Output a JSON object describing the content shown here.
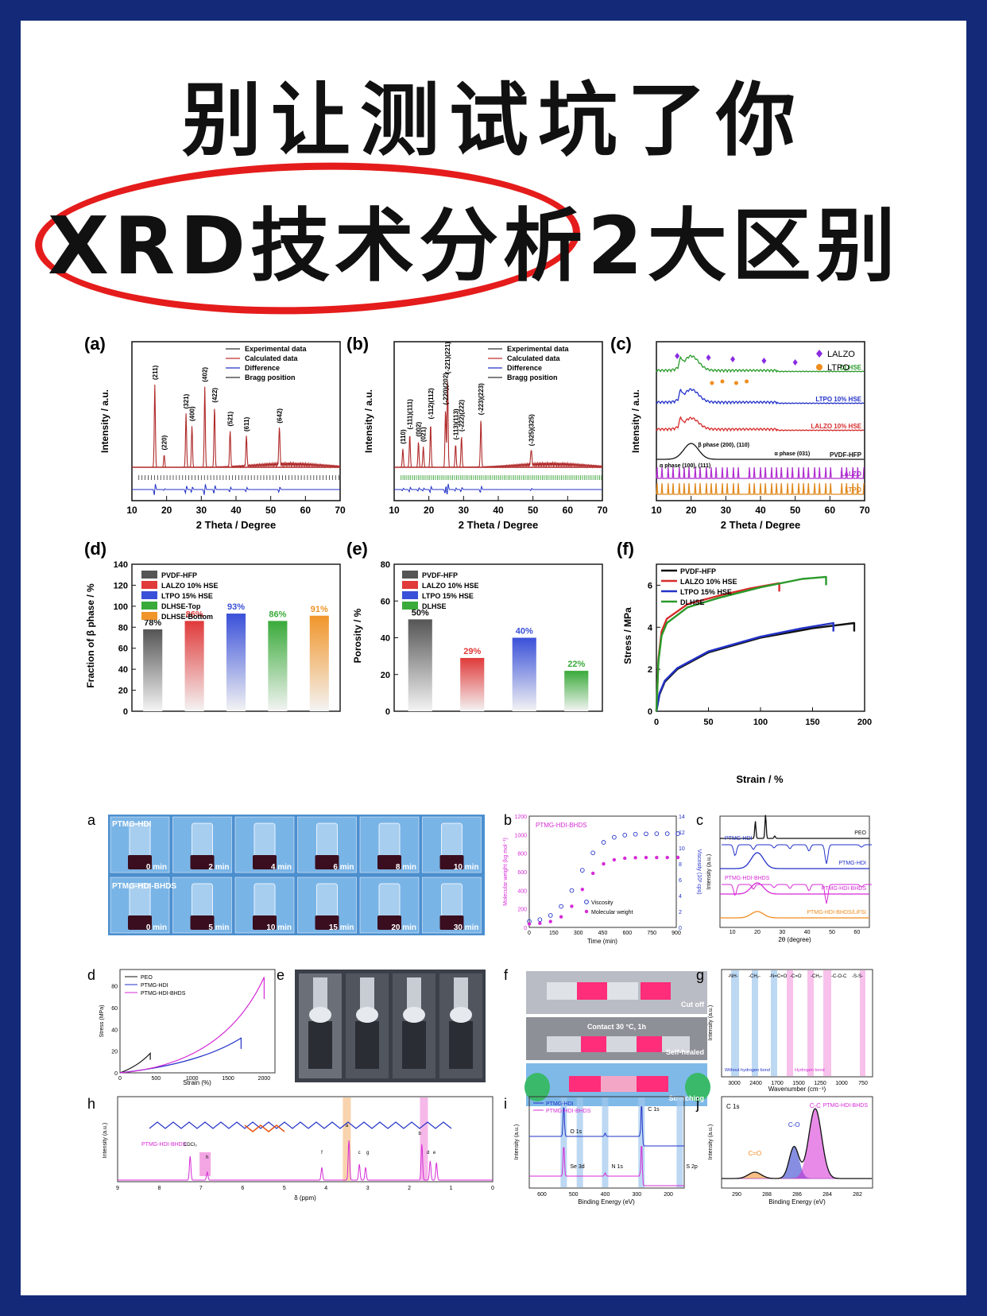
{
  "title": {
    "line1": "别让测试坑了你",
    "line2": "XRD技术分析2大区别"
  },
  "colors": {
    "background": "#142a78",
    "card": "#ffffff",
    "oval": "#e51c1c",
    "red": "#d62b2b",
    "blue": "#2332c8",
    "green": "#2a9a2a"
  },
  "panel_a": {
    "label": "(a)",
    "xlabel": "2 Theta / Degree",
    "ylabel": "Intensity / a.u.",
    "legend": [
      "Experimental data",
      "Calculated data",
      "Difference",
      "Bragg position"
    ],
    "xticks": [
      "10",
      "20",
      "30",
      "40",
      "50",
      "60",
      "70"
    ],
    "peaks": [
      {
        "x": 16.6,
        "h": 0.8,
        "label": "(211)"
      },
      {
        "x": 19.3,
        "h": 0.12,
        "label": "(220)"
      },
      {
        "x": 25.6,
        "h": 0.52,
        "label": "(321)"
      },
      {
        "x": 27.3,
        "h": 0.4,
        "label": "(400)"
      },
      {
        "x": 31.0,
        "h": 0.78,
        "label": "(402)"
      },
      {
        "x": 33.8,
        "h": 0.58,
        "label": "(422)"
      },
      {
        "x": 38.3,
        "h": 0.35,
        "label": "(521)"
      },
      {
        "x": 43.0,
        "h": 0.3,
        "label": "(611)"
      },
      {
        "x": 52.5,
        "h": 0.38,
        "label": "(642)"
      }
    ]
  },
  "panel_b": {
    "label": "(b)",
    "xlabel": "2 Theta / Degree",
    "ylabel": "Intensity / a.u.",
    "legend": [
      "Experimental data",
      "Calculated data",
      "Difference",
      "Bragg position"
    ],
    "xticks": [
      "10",
      "20",
      "30",
      "40",
      "50",
      "60",
      "70"
    ],
    "peaks": [
      {
        "x": 12.5,
        "h": 0.18,
        "label": "(110)"
      },
      {
        "x": 14.5,
        "h": 0.32,
        "label": "(-111)(111)"
      },
      {
        "x": 17.0,
        "h": 0.25,
        "label": "(002)"
      },
      {
        "x": 18.4,
        "h": 0.2,
        "label": "(021)"
      },
      {
        "x": 20.5,
        "h": 0.42,
        "label": "(-112)(112)"
      },
      {
        "x": 24.8,
        "h": 0.56,
        "label": "(-220)(202)"
      },
      {
        "x": 25.4,
        "h": 0.86,
        "label": "(-221)(221)"
      },
      {
        "x": 27.7,
        "h": 0.22,
        "label": "(-113)(113)"
      },
      {
        "x": 29.4,
        "h": 0.3,
        "label": "(-222)(222)"
      },
      {
        "x": 35.0,
        "h": 0.46,
        "label": "(-223)(223)"
      },
      {
        "x": 49.5,
        "h": 0.16,
        "label": "(-325)(325)"
      }
    ]
  },
  "panel_c": {
    "label": "(c)",
    "xlabel": "2 Theta / Degree",
    "ylabel": "Intensity / a.u.",
    "legend": [
      "LALZO",
      "LTPO"
    ],
    "xticks": [
      "10",
      "20",
      "30",
      "40",
      "50",
      "60",
      "70"
    ],
    "traces": [
      "DLHSE",
      "LTPO 10% HSE",
      "LALZO 10% HSE",
      "PVDF-HFP",
      "LALZO",
      "LTPO"
    ],
    "annotations": [
      "β phase (200), (110)",
      "α phase (100), (111)",
      "α phase (031)"
    ]
  },
  "panel_d": {
    "label": "(d)",
    "ylabel": "Fraction of β phase / %",
    "legend": [
      "PVDF-HFP",
      "LALZO 10% HSE",
      "LTPO 15% HSE",
      "DLHSE-Top",
      "DLHSE-Bottom"
    ],
    "yticks": [
      "0",
      "20",
      "40",
      "60",
      "80",
      "100",
      "120",
      "140"
    ]
  },
  "panel_e": {
    "label": "(e)",
    "ylabel": "Porosity / %",
    "legend": [
      "PVDF-HFP",
      "LALZO 10% HSE",
      "LTPO 15% HSE",
      "DLHSE"
    ],
    "yticks": [
      "0",
      "20",
      "40",
      "60",
      "80"
    ]
  },
  "panel_f": {
    "label": "(f)",
    "xlabel": "Strain / %",
    "ylabel": "Stress / MPa",
    "legend": [
      "PVDF-HFP",
      "LALZO 10% HSE",
      "LTPO 15% HSE",
      "DLHSE"
    ],
    "xticks": [
      "0",
      "50",
      "100",
      "150",
      "200"
    ],
    "yticks": [
      "0",
      "2",
      "4",
      "6"
    ]
  },
  "chart_data": [
    {
      "type": "bar",
      "categories": [
        "PVDF-HFP",
        "LALZO 10% HSE",
        "LTPO 15% HSE",
        "DLHSE-Top",
        "DLHSE-Bottom"
      ],
      "values": [
        78,
        86,
        93,
        86,
        91
      ],
      "labels": [
        "78%",
        "86%",
        "93%",
        "86%",
        "91%"
      ],
      "ylabel": "Fraction of β phase / %",
      "ylim": [
        0,
        140
      ]
    },
    {
      "type": "bar",
      "categories": [
        "PVDF-HFP",
        "LALZO 10% HSE",
        "LTPO 15% HSE",
        "DLHSE"
      ],
      "values": [
        50,
        29,
        40,
        22
      ],
      "labels": [
        "50%",
        "29%",
        "40%",
        "22%"
      ],
      "ylabel": "Porosity / %",
      "ylim": [
        0,
        80
      ]
    },
    {
      "type": "line",
      "xlabel": "Strain / %",
      "ylabel": "Stress / MPa",
      "xlim": [
        0,
        200
      ],
      "ylim": [
        0,
        7
      ],
      "series": [
        {
          "name": "PVDF-HFP",
          "x": [
            0,
            3,
            8,
            20,
            50,
            100,
            150,
            190
          ],
          "y": [
            0,
            0.8,
            1.4,
            2.0,
            2.8,
            3.5,
            3.95,
            4.2
          ]
        },
        {
          "name": "LALZO 10% HSE",
          "x": [
            0,
            2,
            5,
            10,
            30,
            60,
            90,
            118
          ],
          "y": [
            0,
            2.5,
            3.8,
            4.4,
            5.1,
            5.5,
            5.85,
            6.1
          ]
        },
        {
          "name": "LTPO 15% HSE",
          "x": [
            0,
            3,
            8,
            20,
            50,
            100,
            140,
            170
          ],
          "y": [
            0,
            0.85,
            1.45,
            2.05,
            2.85,
            3.55,
            3.95,
            4.2
          ]
        },
        {
          "name": "DLHSE",
          "x": [
            0,
            2,
            5,
            10,
            30,
            60,
            100,
            140,
            163
          ],
          "y": [
            0,
            2.4,
            3.6,
            4.2,
            4.95,
            5.4,
            5.9,
            6.3,
            6.4
          ]
        }
      ]
    }
  ],
  "lower": {
    "a": {
      "label": "a",
      "row1_title": "PTMG-HDI",
      "row2_title": "PTMG-HDI-BHDS",
      "row1_times": [
        "0 min",
        "2 min",
        "4 min",
        "6 min",
        "8 min",
        "10 min"
      ],
      "row2_times": [
        "0 min",
        "5 min",
        "10 min",
        "15 min",
        "20 min",
        "30 min"
      ]
    },
    "b": {
      "label": "b",
      "title": "PTMG-HDI-BHDS",
      "legend": [
        "Viscosity",
        "Molecular weight"
      ],
      "xlabel": "Time (min)",
      "ylabel_left": "Molecular weight (kg mol⁻¹)",
      "ylabel_right": "Viscosity (10³ cps)",
      "xticks": [
        "0",
        "150",
        "300",
        "450",
        "600",
        "750",
        "900"
      ],
      "yticks_left": [
        "0",
        "200",
        "400",
        "600",
        "800",
        "1000",
        "1200"
      ],
      "yticks_right": [
        "0",
        "2",
        "4",
        "6",
        "8",
        "10",
        "12",
        "14"
      ]
    },
    "c": {
      "label": "c",
      "traces": [
        "PEO",
        "PTMG-HDI",
        "PTMG-HDI-BHDS",
        "PTMG-HDI-BHDS/LiFSI"
      ],
      "xlabel": "2θ (degree)",
      "ylabel": "Intensity (a.u.)",
      "xticks": [
        "10",
        "20",
        "30",
        "40",
        "50",
        "60"
      ]
    },
    "d": {
      "label": "d",
      "legend": [
        "PEO",
        "PTMG-HDI",
        "PTMG-HDI-BHDS"
      ],
      "xlabel": "Strain (%)",
      "ylabel": "Stress (MPa)",
      "xticks": [
        "0",
        "500",
        "1000",
        "1500",
        "2000"
      ],
      "yticks": [
        "0",
        "20",
        "40",
        "60",
        "80"
      ]
    },
    "e": {
      "label": "e"
    },
    "f": {
      "label": "f",
      "captions": [
        "Cut off",
        "Contact   30 °C, 1h",
        "Self-healed",
        "Stretching"
      ]
    },
    "g": {
      "label": "g",
      "traces": [
        "PTMG-HDI",
        "PTMG-HDI-BHDS"
      ],
      "top_labels": [
        "-NH-",
        "-CH₂-",
        "-N=C=O",
        "-C=O",
        "-CH₂-",
        "-C-O-C",
        "-S-S-"
      ],
      "xlabel": "Wavenumber (cm⁻¹)",
      "ylabel": "Intensity (a.u.)",
      "xticks": [
        "3000",
        "2400",
        "1700",
        "1500",
        "1250",
        "1000",
        "750"
      ],
      "bottom_labels": [
        "Without hydrogen bond",
        "Hydrogen bond"
      ]
    },
    "h": {
      "label": "h",
      "trace": "PTMG-HDI-BHDS",
      "xlabel": "δ (ppm)",
      "ylabel": "Intensity (a.u.)",
      "xticks": [
        "9",
        "8",
        "7",
        "6",
        "5",
        "4",
        "3",
        "2",
        "1",
        "0"
      ],
      "peak_labels": [
        "CDCl₃",
        "h",
        "f",
        "a",
        "c",
        "g",
        "b",
        "d",
        "e"
      ]
    },
    "i": {
      "label": "i",
      "legend": [
        "PTMG-HDI",
        "PTMG-HDI-BHDS"
      ],
      "peak_labels": [
        "C 1s",
        "O 1s",
        "Se 3d",
        "N 1s",
        "S 2p"
      ],
      "xlabel": "Binding Energy (eV)",
      "ylabel": "Intensity (a.u.)",
      "xticks": [
        "600",
        "500",
        "400",
        "300",
        "200"
      ]
    },
    "j": {
      "label": "j",
      "title": "C 1s",
      "series_label": "PTMG-HDI-BHDS",
      "peak_labels": [
        "C=O",
        "C-O",
        "C-C"
      ],
      "xlabel": "Binding Energy (eV)",
      "ylabel": "Intensity (a.u.)",
      "xticks": [
        "290",
        "288",
        "286",
        "284",
        "282"
      ]
    }
  }
}
